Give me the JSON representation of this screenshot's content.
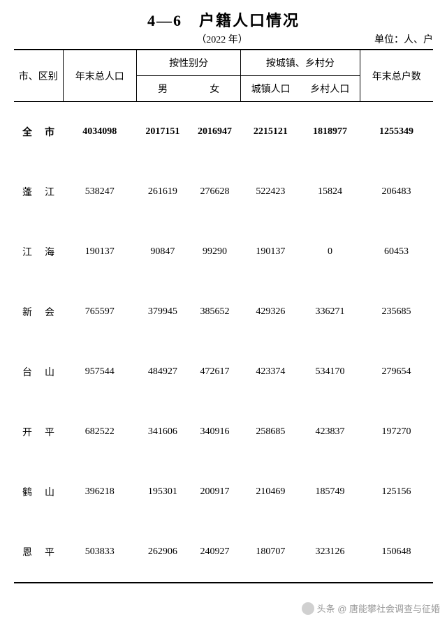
{
  "title": "4—6　户籍人口情况",
  "year": "（2022 年）",
  "unit": "单位：人、户",
  "headers": {
    "region": "市、区别",
    "total_pop": "年末总人口",
    "by_gender": "按性别分",
    "male": "男",
    "female": "女",
    "by_area": "按城镇、乡村分",
    "urban": "城镇人口",
    "rural": "乡村人口",
    "households": "年末总户数"
  },
  "rows": [
    {
      "region": "全　市",
      "total": "4034098",
      "male": "2017151",
      "female": "2016947",
      "urban": "2215121",
      "rural": "1818977",
      "households": "1255349",
      "bold": true
    },
    {
      "region": "蓬　江",
      "total": "538247",
      "male": "261619",
      "female": "276628",
      "urban": "522423",
      "rural": "15824",
      "households": "206483"
    },
    {
      "region": "江　海",
      "total": "190137",
      "male": "90847",
      "female": "99290",
      "urban": "190137",
      "rural": "0",
      "households": "60453"
    },
    {
      "region": "新　会",
      "total": "765597",
      "male": "379945",
      "female": "385652",
      "urban": "429326",
      "rural": "336271",
      "households": "235685"
    },
    {
      "region": "台　山",
      "total": "957544",
      "male": "484927",
      "female": "472617",
      "urban": "423374",
      "rural": "534170",
      "households": "279654"
    },
    {
      "region": "开　平",
      "total": "682522",
      "male": "341606",
      "female": "340916",
      "urban": "258685",
      "rural": "423837",
      "households": "197270"
    },
    {
      "region": "鹤　山",
      "total": "396218",
      "male": "195301",
      "female": "200917",
      "urban": "210469",
      "rural": "185749",
      "households": "125156"
    },
    {
      "region": "恩　平",
      "total": "503833",
      "male": "262906",
      "female": "240927",
      "urban": "180707",
      "rural": "323126",
      "households": "150648"
    }
  ],
  "watermark": "头条 @ 唐能攀社会调查与征婚"
}
